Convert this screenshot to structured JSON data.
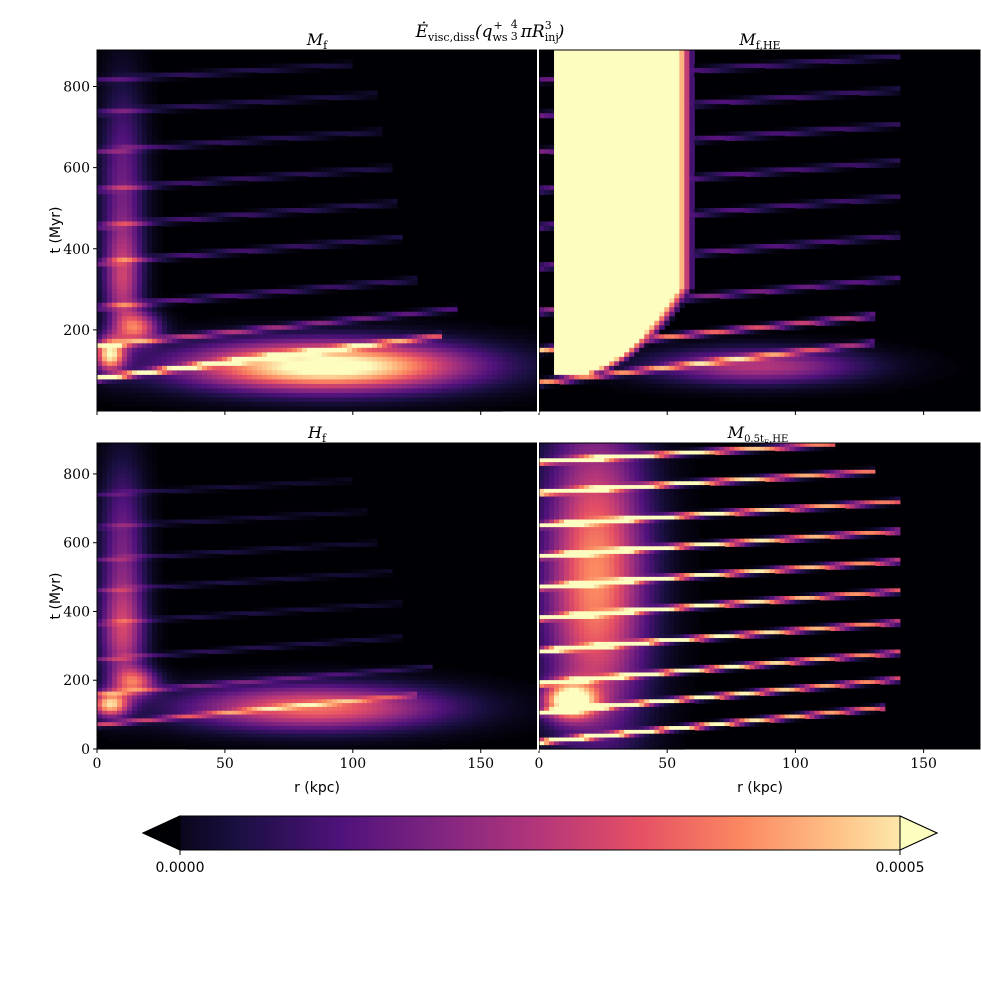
{
  "figure": {
    "suptitle_parts": [
      "Ė",
      "visc,diss",
      "(q",
      "ws",
      "+",
      "4",
      "3",
      "πR",
      "inj",
      "3",
      ")"
    ]
  },
  "colors": {
    "background": "#000004",
    "colormap": [
      "#000004",
      "#1c1044",
      "#4f127b",
      "#812581",
      "#b5367a",
      "#e55064",
      "#fb8761",
      "#fec287",
      "#fcfdbf"
    ],
    "separator": "#ffffff"
  },
  "chart_data": [
    {
      "type": "heatmap",
      "panel": "top-left",
      "title_parts": [
        "M",
        "f",
        ""
      ],
      "xlabel": "",
      "ylabel": "t (Myr)",
      "xlim": [
        0,
        172
      ],
      "ylim": [
        0,
        890
      ],
      "xticks": [
        0,
        50,
        100,
        150
      ],
      "yticks": [
        200,
        400,
        600,
        800
      ],
      "show_xticklabels": false,
      "show_yticklabels": true,
      "blobs": [
        {
          "r": 90,
          "t": 110,
          "sr": 38,
          "st": 42,
          "amp": 0.00055
        },
        {
          "r": 5,
          "t": 140,
          "sr": 4,
          "st": 28,
          "amp": 0.00045
        },
        {
          "r": 16,
          "t": 205,
          "sr": 6,
          "st": 28,
          "amp": 0.0003
        },
        {
          "r": 10,
          "t": 320,
          "sr": 5,
          "st": 90,
          "amp": 0.00022
        },
        {
          "r": 10,
          "t": 560,
          "sr": 6,
          "st": 170,
          "amp": 0.00016
        }
      ],
      "streaks": [
        {
          "t0": 80,
          "slope": 0.78,
          "amp": 0.0005,
          "r_end": 135,
          "w": 3
        },
        {
          "t0": 160,
          "slope": 0.65,
          "amp": 0.00025,
          "r_end": 140,
          "w": 3
        },
        {
          "t0": 255,
          "slope": 0.55,
          "amp": 0.00016,
          "r_end": 125,
          "w": 3
        },
        {
          "t0": 365,
          "slope": 0.52,
          "amp": 0.00014,
          "r_end": 120,
          "w": 3
        },
        {
          "t0": 455,
          "slope": 0.5,
          "amp": 0.00013,
          "r_end": 118,
          "w": 3
        },
        {
          "t0": 545,
          "slope": 0.48,
          "amp": 0.00012,
          "r_end": 115,
          "w": 3
        },
        {
          "t0": 640,
          "slope": 0.45,
          "amp": 0.00011,
          "r_end": 112,
          "w": 3
        },
        {
          "t0": 735,
          "slope": 0.42,
          "amp": 0.0001,
          "r_end": 110,
          "w": 3
        },
        {
          "t0": 815,
          "slope": 0.4,
          "amp": 0.0001,
          "r_end": 100,
          "w": 3
        }
      ],
      "core": null
    },
    {
      "type": "heatmap",
      "panel": "top-right",
      "title_parts": [
        "M",
        "f,HE",
        ""
      ],
      "xlabel": "",
      "ylabel": "",
      "xlim": [
        0,
        172
      ],
      "ylim": [
        0,
        890
      ],
      "xticks": [
        0,
        50,
        100,
        150
      ],
      "yticks": [
        200,
        400,
        600,
        800
      ],
      "show_xticklabels": false,
      "show_yticklabels": false,
      "blobs": [
        {
          "r": 85,
          "t": 110,
          "sr": 28,
          "st": 30,
          "amp": 0.00025
        }
      ],
      "streaks": [
        {
          "t0": 70,
          "slope": 0.75,
          "amp": 0.0004,
          "r_end": 130,
          "w": 3
        },
        {
          "t0": 150,
          "slope": 0.65,
          "amp": 0.00045,
          "r_end": 130,
          "w": 3
        },
        {
          "t0": 245,
          "slope": 0.58,
          "amp": 0.00025,
          "r_end": 140,
          "w": 3
        },
        {
          "t0": 355,
          "slope": 0.55,
          "amp": 0.0002,
          "r_end": 140,
          "w": 3
        },
        {
          "t0": 455,
          "slope": 0.52,
          "amp": 0.00018,
          "r_end": 140,
          "w": 3
        },
        {
          "t0": 545,
          "slope": 0.5,
          "amp": 0.00018,
          "r_end": 140,
          "w": 3
        },
        {
          "t0": 640,
          "slope": 0.47,
          "amp": 0.00018,
          "r_end": 140,
          "w": 3
        },
        {
          "t0": 730,
          "slope": 0.44,
          "amp": 0.00017,
          "r_end": 140,
          "w": 3
        },
        {
          "t0": 815,
          "slope": 0.42,
          "amp": 0.00016,
          "r_end": 140,
          "w": 3
        }
      ],
      "core": {
        "t_start": 85,
        "r_left": 5,
        "r_right_top": 55,
        "r_right_bottom": 10,
        "amp": 0.0008
      }
    },
    {
      "type": "heatmap",
      "panel": "bottom-left",
      "title_parts": [
        "H",
        "f",
        ""
      ],
      "xlabel": "r (kpc)",
      "ylabel": "t (Myr)",
      "xlim": [
        0,
        172
      ],
      "ylim": [
        0,
        890
      ],
      "xticks": [
        0,
        50,
        100,
        150
      ],
      "yticks": [
        0,
        200,
        400,
        600,
        800
      ],
      "show_xticklabels": true,
      "show_yticklabels": true,
      "blobs": [
        {
          "r": 85,
          "t": 120,
          "sr": 35,
          "st": 45,
          "amp": 0.00035
        },
        {
          "r": 5,
          "t": 130,
          "sr": 5,
          "st": 25,
          "amp": 0.00042
        },
        {
          "r": 15,
          "t": 195,
          "sr": 6,
          "st": 28,
          "amp": 0.00028
        },
        {
          "r": 10,
          "t": 330,
          "sr": 6,
          "st": 100,
          "amp": 0.00022
        },
        {
          "r": 10,
          "t": 580,
          "sr": 6,
          "st": 180,
          "amp": 0.00017
        }
      ],
      "streaks": [
        {
          "t0": 70,
          "slope": 0.7,
          "amp": 0.00025,
          "r_end": 125,
          "w": 3
        },
        {
          "t0": 160,
          "slope": 0.6,
          "amp": 0.00015,
          "r_end": 130,
          "w": 3
        },
        {
          "t0": 260,
          "slope": 0.55,
          "amp": 0.0001,
          "r_end": 120,
          "w": 3
        },
        {
          "t0": 365,
          "slope": 0.5,
          "amp": 8e-05,
          "r_end": 120,
          "w": 3
        },
        {
          "t0": 460,
          "slope": 0.48,
          "amp": 8e-05,
          "r_end": 115,
          "w": 3
        },
        {
          "t0": 550,
          "slope": 0.46,
          "amp": 8e-05,
          "r_end": 110,
          "w": 3
        },
        {
          "t0": 645,
          "slope": 0.44,
          "amp": 7e-05,
          "r_end": 105,
          "w": 3
        },
        {
          "t0": 740,
          "slope": 0.42,
          "amp": 7e-05,
          "r_end": 100,
          "w": 3
        }
      ],
      "core": null
    },
    {
      "type": "heatmap",
      "panel": "bottom-right",
      "title_parts": [
        "M",
        "0.5t",
        "E",
        ",HE"
      ],
      "xlabel": "r (kpc)",
      "ylabel": "",
      "xlim": [
        0,
        172
      ],
      "ylim": [
        0,
        890
      ],
      "xticks": [
        0,
        50,
        100,
        150
      ],
      "yticks": [
        0,
        200,
        400,
        600,
        800
      ],
      "show_xticklabels": true,
      "show_yticklabels": false,
      "blobs": [
        {
          "r": 22,
          "t": 500,
          "sr": 14,
          "st": 320,
          "amp": 0.00038
        },
        {
          "r": 12,
          "t": 140,
          "sr": 7,
          "st": 35,
          "amp": 0.0005
        }
      ],
      "streaks": [
        {
          "t0": 20,
          "slope": 0.75,
          "amp": 0.0007,
          "r_end": 135,
          "w": 3
        },
        {
          "t0": 105,
          "slope": 0.7,
          "amp": 0.0007,
          "r_end": 140,
          "w": 3
        },
        {
          "t0": 190,
          "slope": 0.65,
          "amp": 0.0007,
          "r_end": 140,
          "w": 3
        },
        {
          "t0": 285,
          "slope": 0.6,
          "amp": 0.0007,
          "r_end": 140,
          "w": 3
        },
        {
          "t0": 380,
          "slope": 0.57,
          "amp": 0.0007,
          "r_end": 140,
          "w": 3
        },
        {
          "t0": 470,
          "slope": 0.55,
          "amp": 0.0007,
          "r_end": 140,
          "w": 3
        },
        {
          "t0": 560,
          "slope": 0.53,
          "amp": 0.0007,
          "r_end": 140,
          "w": 3
        },
        {
          "t0": 650,
          "slope": 0.5,
          "amp": 0.0007,
          "r_end": 140,
          "w": 3
        },
        {
          "t0": 745,
          "slope": 0.48,
          "amp": 0.0007,
          "r_end": 130,
          "w": 3
        },
        {
          "t0": 835,
          "slope": 0.45,
          "amp": 0.0007,
          "r_end": 115,
          "w": 3
        }
      ],
      "core": null
    }
  ],
  "colorbar": {
    "vmin": 0.0,
    "vmax": 0.0005,
    "min_label": "0.0000",
    "max_label": "0.0005",
    "extend": "both"
  }
}
